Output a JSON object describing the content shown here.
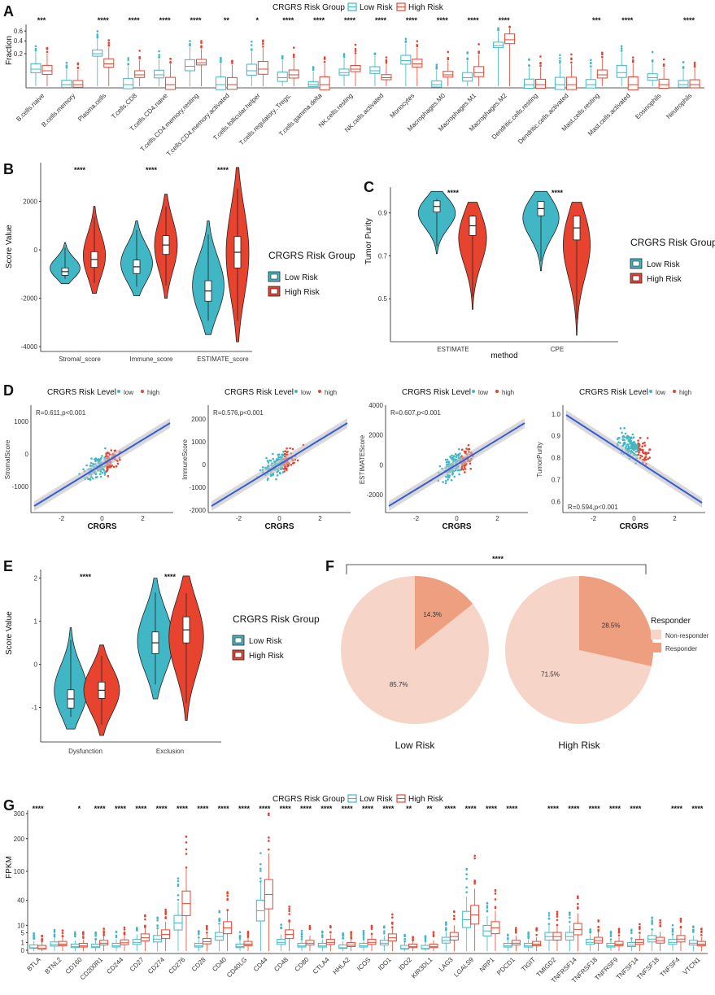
{
  "colors": {
    "low": "#41b6c4",
    "high": "#e8432f",
    "nonresp": "#f6d5c8",
    "resp": "#ee9f80"
  },
  "chart_data": [
    {
      "panel": "A",
      "type": "box",
      "legend": {
        "title": "CRGRS Risk Group",
        "items": [
          "Low Risk",
          "High Risk"
        ]
      },
      "ylabel": "Fraction",
      "yticks": [
        "0.6",
        "0.4",
        "0.2"
      ],
      "categories": [
        "B.cells.naive",
        "B.cells.memory",
        "Plasma.cells",
        "T.cells.CD8",
        "T.cells.CD4.naive",
        "T.cells.CD4.memory.resting",
        "T.cells.CD4.memory.activated",
        "T.cells.follicular.helper",
        "T.cells.regulatory..Tregs.",
        "T.cells.gamma.delta",
        "NK.cells.resting",
        "NK.cells.activated",
        "Monocytes",
        "Macrophages.M0",
        "Macrophages.M1",
        "Macrophages.M2",
        "Dendritic.cells.resting",
        "Dendritic.cells.activated",
        "Mast.cells.resting",
        "Mast.cells.activated",
        "Eosinophils",
        "Neutrophils"
      ],
      "significance": [
        "***",
        "",
        "****",
        "****",
        "****",
        "****",
        "**",
        "*",
        "****",
        "****",
        "****",
        "****",
        "****",
        "****",
        "****",
        "****",
        "",
        "",
        "***",
        "****",
        "",
        "****"
      ],
      "low_median": [
        0.05,
        0.0,
        0.2,
        0.0,
        0.02,
        0.07,
        0.0,
        0.04,
        0.01,
        0.0,
        0.03,
        0.04,
        0.12,
        0.0,
        0.01,
        0.32,
        0.0,
        0.0,
        0.0,
        0.03,
        0.01,
        0.0
      ],
      "high_median": [
        0.04,
        0.0,
        0.09,
        0.02,
        0.0,
        0.1,
        0.0,
        0.05,
        0.02,
        0.0,
        0.05,
        0.01,
        0.09,
        0.02,
        0.03,
        0.42,
        0.0,
        0.0,
        0.02,
        0.0,
        0.0,
        0.0
      ]
    },
    {
      "panel": "B",
      "type": "violin",
      "legend": {
        "title": "CRGRS Risk Group",
        "items": [
          "Low Risk",
          "High Risk"
        ]
      },
      "ylabel": "Score Value",
      "categories": [
        "Stromal_score",
        "Immune_score",
        "ESTIMATE_score"
      ],
      "significance": [
        "****",
        "****",
        "****"
      ],
      "ylim": [
        -4200,
        3600
      ],
      "yticks": [
        2000,
        0,
        -2000,
        -4000
      ],
      "low_median": [
        -900,
        -700,
        -1700
      ],
      "high_median": [
        -400,
        200,
        -100
      ]
    },
    {
      "panel": "C",
      "type": "violin",
      "legend": {
        "title": "CRGRS Risk Group",
        "items": [
          "Low Risk",
          "High Risk"
        ]
      },
      "ylabel": "Tumor Purity",
      "xlabel": "method",
      "categories": [
        "ESTIMATE",
        "CPE"
      ],
      "significance": [
        "****",
        "****"
      ],
      "ylim": [
        0.3,
        1.02
      ],
      "yticks": [
        0.9,
        0.7,
        0.5
      ],
      "low_median": [
        0.93,
        0.92
      ],
      "high_median": [
        0.84,
        0.83
      ]
    },
    {
      "panel": "D",
      "type": "scatter",
      "legend": {
        "title": "CRGRS Risk Level",
        "items": [
          "low",
          "high"
        ]
      },
      "xlabel": "CRGRS",
      "subplots": [
        {
          "ylabel": "StromalScore",
          "annotation": "R=0.611,p<0.001",
          "yticks": [
            "1000",
            "0",
            "-1000"
          ],
          "ylim": [
            -1800,
            1500
          ],
          "xticks": [
            "-2",
            "0",
            "2"
          ]
        },
        {
          "ylabel": "ImmuneScore",
          "annotation": "R=0.576,p<0.001",
          "yticks": [
            "2000",
            "1000",
            "0",
            "-1000",
            "-2000"
          ],
          "ylim": [
            -2100,
            2600
          ],
          "xticks": [
            "-2",
            "0",
            "2"
          ]
        },
        {
          "ylabel": "ESTIMATEScore",
          "annotation": "R=0.607,p<0.001",
          "yticks": [
            "4000",
            "2000",
            "0",
            "-2000"
          ],
          "ylim": [
            -3200,
            4000
          ],
          "xticks": [
            "-2",
            "0",
            "2"
          ]
        },
        {
          "ylabel": "TumorPurity",
          "annotation": "R=0.594,p<0.001",
          "yticks": [
            "1.0",
            "0.9",
            "0.8",
            "0.7",
            "0.6"
          ],
          "ylim": [
            0.55,
            1.04
          ],
          "xticks": [
            "-2",
            "0",
            "2"
          ]
        }
      ]
    },
    {
      "panel": "E",
      "type": "violin",
      "legend": {
        "title": "CRGRS Risk Group",
        "items": [
          "Low Risk",
          "High Risk"
        ]
      },
      "ylabel": "Score Value",
      "categories": [
        "Dysfunction",
        "Exclusion"
      ],
      "significance": [
        "****",
        "****"
      ],
      "ylim": [
        -1.8,
        2.2
      ],
      "yticks": [
        2,
        1,
        0,
        -1
      ],
      "low_median": [
        -0.8,
        0.5
      ],
      "high_median": [
        -0.6,
        0.8
      ]
    },
    {
      "panel": "F",
      "type": "pie",
      "significance": "****",
      "legend": {
        "title": "Responder",
        "items": [
          "Non-responder",
          "Responder"
        ]
      },
      "pies": [
        {
          "label": "Low Risk",
          "responder": 14.3,
          "non_responder": 85.7,
          "responder_label": "14.3%",
          "non_responder_label": "85.7%"
        },
        {
          "label": "High Risk",
          "responder": 28.5,
          "non_responder": 71.5,
          "responder_label": "28.5%",
          "non_responder_label": "71.5%"
        }
      ]
    },
    {
      "panel": "G",
      "type": "box",
      "legend": {
        "title": "CRGRS Risk Group",
        "items": [
          "Low Risk",
          "High Risk"
        ]
      },
      "ylabel": "FPKM",
      "yticks": [
        "300",
        "200",
        "100",
        "40",
        "10",
        "5",
        "1",
        "0"
      ],
      "categories": [
        "BTLA",
        "BTNL2",
        "CD160",
        "CD200R1",
        "CD244",
        "CD27",
        "CD274",
        "CD276",
        "CD28",
        "CD40",
        "CD40LG",
        "CD44",
        "CD48",
        "CD80",
        "CTLA4",
        "HHLA2",
        "ICOS",
        "IDO1",
        "IDO2",
        "KIR3DL1",
        "LAG3",
        "LGALS9",
        "NRP1",
        "PDCD1",
        "TIGIT",
        "TMIGD2",
        "TNFRSF14",
        "TNFRSF18",
        "TNFRSF9",
        "TNFSF14",
        "TNFSF18",
        "TNFSF4",
        "VTCN1"
      ],
      "significance": [
        "****",
        "",
        "*",
        "****",
        "****",
        "****",
        "****",
        "****",
        "****",
        "****",
        "****",
        "****",
        "****",
        "****",
        "****",
        "****",
        "****",
        "****",
        "**",
        "**",
        "****",
        "****",
        "****",
        "****",
        "",
        "****",
        "****",
        "****",
        "****",
        "****",
        "",
        "****",
        "****"
      ],
      "low_median": [
        0.1,
        0.5,
        0.2,
        0.2,
        0.3,
        1,
        2,
        12,
        0.3,
        3,
        0.2,
        25,
        1,
        0.3,
        0.3,
        0.1,
        0.3,
        0.8,
        0.05,
        0.05,
        1.5,
        15,
        6,
        0.3,
        0.3,
        3,
        3,
        1,
        0.3,
        0.4,
        2,
        1,
        0.8
      ],
      "high_median": [
        0.05,
        0.6,
        0.3,
        0.8,
        0.9,
        2.5,
        4,
        35,
        1.2,
        8,
        0.6,
        50,
        4,
        0.8,
        1,
        0.4,
        1,
        2.5,
        0.2,
        0.2,
        3,
        20,
        8,
        0.8,
        0.6,
        3,
        7,
        1.5,
        0.6,
        1,
        1.5,
        2,
        0.6
      ]
    }
  ]
}
